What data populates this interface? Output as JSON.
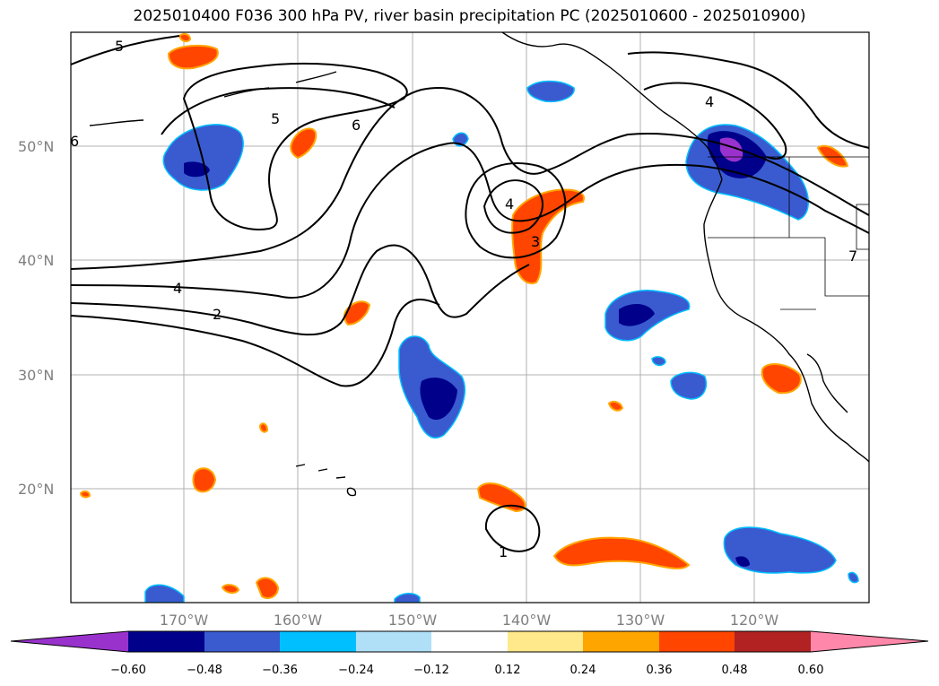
{
  "title": "2025010400 F036 300 hPa PV, river basin precipitation PC (2025010600 - 2025010900)",
  "axes": {
    "lat_labels": [
      "50°N",
      "40°N",
      "30°N",
      "20°N"
    ],
    "lon_labels": [
      "170°W",
      "160°W",
      "150°W",
      "140°W",
      "130°W",
      "120°W"
    ]
  },
  "colorbar": {
    "colors": [
      "#9932cc",
      "#00008b",
      "#3a5bd0",
      "#00bfff",
      "#b0e0f8",
      "#ffffff",
      "#ffe98a",
      "#ffa500",
      "#ff4500",
      "#b22222",
      "#ff88aa"
    ],
    "tick_labels": [
      "−0.60",
      "−0.48",
      "−0.36",
      "−0.24",
      "−0.12",
      "0.12",
      "0.24",
      "0.36",
      "0.48",
      "0.60"
    ]
  },
  "contour_labels": [
    "5",
    "5",
    "6",
    "4",
    "2",
    "4",
    "1",
    "4",
    "3",
    "6",
    "7"
  ]
}
